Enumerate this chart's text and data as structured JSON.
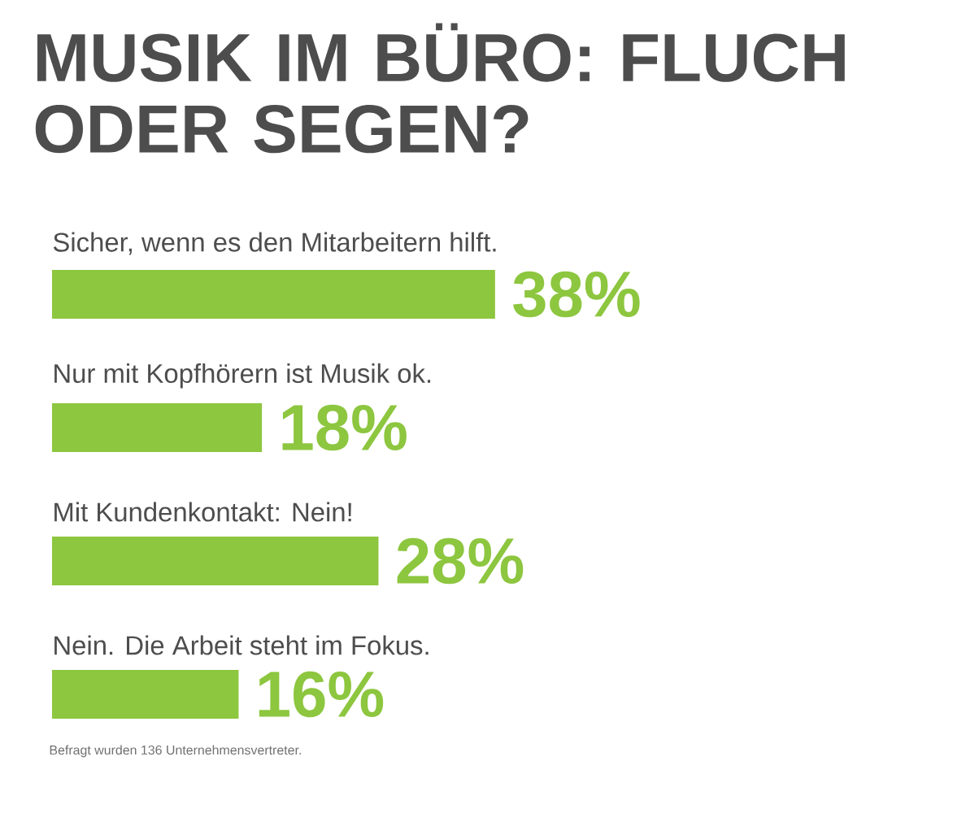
{
  "chart_data": {
    "type": "bar",
    "orientation": "horizontal",
    "title": "MUSIK IM BÜRO: FLUCH ODER SEGEN?",
    "categories": [
      "Sicher, wenn es den Mitarbeitern hilft.",
      "Nur mit Kopfhörern ist Musik ok.",
      "Mit Kundenkontakt: Nein!",
      "Nein. Die Arbeit steht im Fokus."
    ],
    "values": [
      38,
      18,
      28,
      16
    ],
    "value_labels": [
      "38%",
      "18%",
      "28%",
      "16%"
    ],
    "color": "#8dc63f",
    "annotations": [
      "Befragt wurden 136 Unternehmensvertreter."
    ]
  }
}
